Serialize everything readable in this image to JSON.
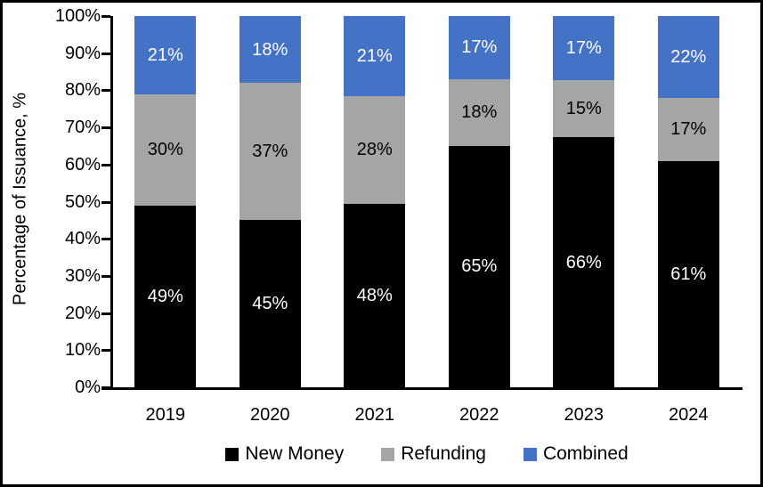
{
  "chart_data": {
    "type": "bar",
    "subtype": "stacked-100-percent",
    "title": "",
    "ylabel": "Percentage of Issuance, %",
    "xlabel": "",
    "categories": [
      "2019",
      "2020",
      "2021",
      "2022",
      "2023",
      "2024"
    ],
    "series": [
      {
        "name": "New Money",
        "color": "#000000",
        "label_color": "#ffffff",
        "values": [
          49,
          45,
          48,
          65,
          66,
          61
        ]
      },
      {
        "name": "Refunding",
        "color": "#A5A5A5",
        "label_color": "#000000",
        "values": [
          30,
          37,
          28,
          18,
          15,
          17
        ]
      },
      {
        "name": "Combined",
        "color": "#4472C4",
        "label_color": "#ffffff",
        "values": [
          21,
          18,
          21,
          17,
          17,
          22
        ]
      }
    ],
    "data_label_suffix": "%",
    "y_ticks": [
      "100%",
      "90%",
      "80%",
      "70%",
      "60%",
      "50%",
      "40%",
      "30%",
      "20%",
      "10%",
      "0%"
    ],
    "ylim": [
      0,
      100
    ],
    "grid": false,
    "legend_position": "bottom",
    "axis_color": "#000000",
    "background_color": "#ffffff",
    "border_color": "#000000"
  }
}
